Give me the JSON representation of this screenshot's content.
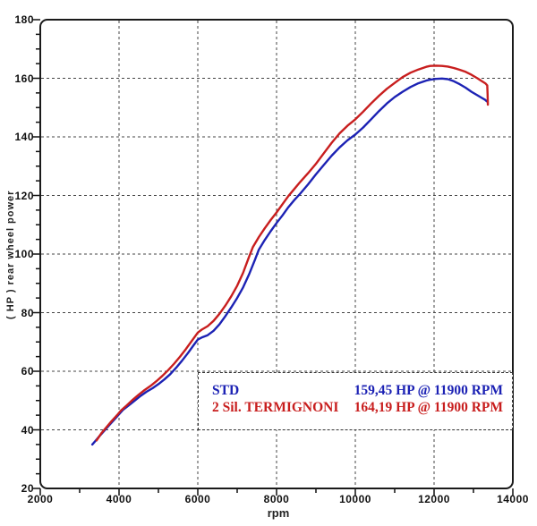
{
  "chart_data": {
    "type": "line",
    "title": "",
    "xlabel": "rpm",
    "ylabel": "( HP )  rear wheel power",
    "xlim": [
      2000,
      14000
    ],
    "ylim": [
      20,
      180
    ],
    "x_major_ticks": [
      2000,
      4000,
      6000,
      8000,
      10000,
      12000,
      14000
    ],
    "x_minor_step": 1000,
    "y_major_ticks": [
      20,
      40,
      60,
      80,
      100,
      120,
      140,
      160,
      180
    ],
    "y_minor_step": 5,
    "grid": "dashed lines at major ticks, rounded plot frame",
    "legend_position": "inside lower-right, white box with dashed border",
    "series": [
      {
        "name": "STD",
        "color": "#1c22b4",
        "peak": "159,45 HP @ 11900 RPM",
        "points": [
          [
            3320,
            35.0
          ],
          [
            3400,
            36.2
          ],
          [
            3500,
            37.8
          ],
          [
            3620,
            39.6
          ],
          [
            3750,
            41.6
          ],
          [
            3900,
            43.8
          ],
          [
            4000,
            45.3
          ],
          [
            4100,
            46.8
          ],
          [
            4250,
            48.4
          ],
          [
            4400,
            50.0
          ],
          [
            4550,
            51.6
          ],
          [
            4700,
            53.0
          ],
          [
            4850,
            54.2
          ],
          [
            5000,
            55.6
          ],
          [
            5150,
            57.2
          ],
          [
            5300,
            59.0
          ],
          [
            5450,
            61.2
          ],
          [
            5600,
            63.6
          ],
          [
            5750,
            66.2
          ],
          [
            5900,
            69.0
          ],
          [
            6000,
            70.8
          ],
          [
            6100,
            71.5
          ],
          [
            6250,
            72.3
          ],
          [
            6400,
            73.8
          ],
          [
            6550,
            76.0
          ],
          [
            6700,
            78.8
          ],
          [
            6850,
            81.8
          ],
          [
            7000,
            85.0
          ],
          [
            7150,
            88.6
          ],
          [
            7300,
            93.0
          ],
          [
            7450,
            98.0
          ],
          [
            7550,
            101.5
          ],
          [
            7700,
            104.8
          ],
          [
            7850,
            107.8
          ],
          [
            8000,
            110.6
          ],
          [
            8150,
            113.2
          ],
          [
            8300,
            116.0
          ],
          [
            8450,
            118.4
          ],
          [
            8600,
            120.6
          ],
          [
            8800,
            123.8
          ],
          [
            9000,
            127.2
          ],
          [
            9200,
            130.4
          ],
          [
            9400,
            133.6
          ],
          [
            9600,
            136.4
          ],
          [
            9800,
            138.8
          ],
          [
            10000,
            140.8
          ],
          [
            10200,
            143.2
          ],
          [
            10400,
            146.0
          ],
          [
            10600,
            148.8
          ],
          [
            10800,
            151.4
          ],
          [
            11000,
            153.6
          ],
          [
            11200,
            155.4
          ],
          [
            11400,
            157.0
          ],
          [
            11600,
            158.3
          ],
          [
            11800,
            159.2
          ],
          [
            11900,
            159.5
          ],
          [
            12050,
            159.8
          ],
          [
            12200,
            159.9
          ],
          [
            12350,
            159.7
          ],
          [
            12500,
            159.0
          ],
          [
            12650,
            158.0
          ],
          [
            12800,
            156.8
          ],
          [
            12950,
            155.4
          ],
          [
            13100,
            154.2
          ],
          [
            13200,
            153.4
          ],
          [
            13300,
            152.6
          ],
          [
            13340,
            152.1
          ]
        ]
      },
      {
        "name": "2 Sil. TERMIGNONI",
        "color": "#c81e1e",
        "peak": "164,19 HP @ 11900 RPM",
        "points": [
          [
            3430,
            36.4
          ],
          [
            3550,
            38.8
          ],
          [
            3680,
            40.9
          ],
          [
            3800,
            42.8
          ],
          [
            3950,
            45.0
          ],
          [
            4050,
            46.6
          ],
          [
            4200,
            48.4
          ],
          [
            4350,
            50.3
          ],
          [
            4500,
            52.0
          ],
          [
            4650,
            53.6
          ],
          [
            4800,
            55.0
          ],
          [
            4950,
            56.6
          ],
          [
            5100,
            58.4
          ],
          [
            5250,
            60.4
          ],
          [
            5400,
            62.6
          ],
          [
            5550,
            65.0
          ],
          [
            5700,
            67.6
          ],
          [
            5850,
            70.4
          ],
          [
            6000,
            73.2
          ],
          [
            6100,
            74.2
          ],
          [
            6250,
            75.4
          ],
          [
            6400,
            77.2
          ],
          [
            6550,
            79.6
          ],
          [
            6700,
            82.4
          ],
          [
            6850,
            85.6
          ],
          [
            7000,
            89.2
          ],
          [
            7150,
            93.6
          ],
          [
            7300,
            99.0
          ],
          [
            7400,
            102.4
          ],
          [
            7550,
            105.8
          ],
          [
            7700,
            108.8
          ],
          [
            7850,
            111.6
          ],
          [
            8000,
            114.2
          ],
          [
            8150,
            117.0
          ],
          [
            8300,
            119.8
          ],
          [
            8450,
            122.2
          ],
          [
            8600,
            124.6
          ],
          [
            8800,
            127.6
          ],
          [
            9000,
            130.8
          ],
          [
            9200,
            134.4
          ],
          [
            9400,
            138.0
          ],
          [
            9600,
            141.2
          ],
          [
            9800,
            143.8
          ],
          [
            10000,
            146.0
          ],
          [
            10200,
            148.6
          ],
          [
            10400,
            151.4
          ],
          [
            10600,
            154.0
          ],
          [
            10800,
            156.4
          ],
          [
            11000,
            158.4
          ],
          [
            11200,
            160.4
          ],
          [
            11400,
            161.9
          ],
          [
            11600,
            163.0
          ],
          [
            11800,
            163.9
          ],
          [
            11900,
            164.2
          ],
          [
            12050,
            164.3
          ],
          [
            12200,
            164.2
          ],
          [
            12350,
            164.0
          ],
          [
            12500,
            163.5
          ],
          [
            12650,
            162.9
          ],
          [
            12800,
            162.2
          ],
          [
            12950,
            161.2
          ],
          [
            13100,
            160.0
          ],
          [
            13200,
            159.1
          ],
          [
            13300,
            158.3
          ],
          [
            13350,
            157.6
          ],
          [
            13360,
            154.5
          ],
          [
            13365,
            151.0
          ]
        ]
      }
    ]
  },
  "axes": {
    "xlabel": "rpm",
    "ylabel": "( HP )  rear wheel power"
  },
  "legend": {
    "rows": [
      {
        "label": "STD",
        "value": "159,45 HP @ 11900 RPM",
        "color": "#1c22b4"
      },
      {
        "label": "2 Sil. TERMIGNONI",
        "value": "164,19 HP @ 11900 RPM",
        "color": "#c81e1e"
      }
    ]
  },
  "style": {
    "frame_color": "#1a1a1a",
    "grid_color": "#444444",
    "background": "#ffffff"
  }
}
